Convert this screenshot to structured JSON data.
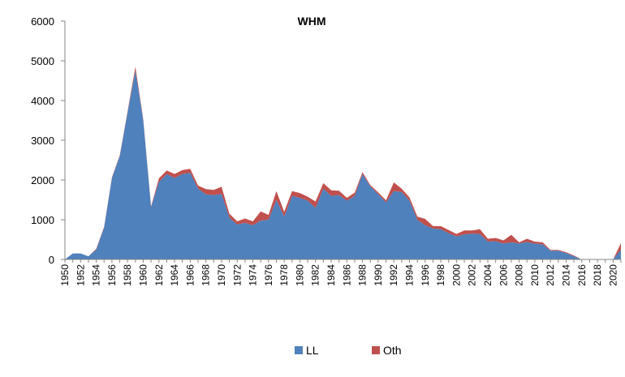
{
  "chart_data": {
    "type": "area",
    "stacked": true,
    "title": "WHM",
    "xlabel": "",
    "ylabel": "",
    "ylim": [
      0,
      6000
    ],
    "yticks": [
      0,
      1000,
      2000,
      3000,
      4000,
      5000,
      6000
    ],
    "xlim": [
      1950,
      2021
    ],
    "xticks": [
      1950,
      1952,
      1954,
      1956,
      1958,
      1960,
      1962,
      1964,
      1966,
      1968,
      1970,
      1972,
      1974,
      1976,
      1978,
      1980,
      1982,
      1984,
      1986,
      1988,
      1990,
      1992,
      1994,
      1996,
      1998,
      2000,
      2002,
      2004,
      2006,
      2008,
      2010,
      2012,
      2014,
      2016,
      2018,
      2020
    ],
    "grid": false,
    "legend_position": "bottom",
    "x": [
      1950,
      1951,
      1952,
      1953,
      1954,
      1955,
      1956,
      1957,
      1958,
      1959,
      1960,
      1961,
      1962,
      1963,
      1964,
      1965,
      1966,
      1967,
      1968,
      1969,
      1970,
      1971,
      1972,
      1973,
      1974,
      1975,
      1976,
      1977,
      1978,
      1979,
      1980,
      1981,
      1982,
      1983,
      1984,
      1985,
      1986,
      1987,
      1988,
      1989,
      1990,
      1991,
      1992,
      1993,
      1994,
      1995,
      1996,
      1997,
      1998,
      1999,
      2000,
      2001,
      2002,
      2003,
      2004,
      2005,
      2006,
      2007,
      2008,
      2009,
      2010,
      2011,
      2012,
      2013,
      2014,
      2015,
      2016,
      2017,
      2018,
      2019,
      2020,
      2021
    ],
    "series": [
      {
        "name": "LL",
        "color": "#4F81BD",
        "values": [
          0,
          150,
          150,
          80,
          250,
          800,
          2050,
          2600,
          3700,
          4750,
          3500,
          1320,
          1950,
          2150,
          2050,
          2150,
          2180,
          1780,
          1640,
          1620,
          1650,
          1050,
          880,
          920,
          860,
          980,
          1000,
          1500,
          1080,
          1600,
          1550,
          1480,
          1300,
          1780,
          1600,
          1620,
          1480,
          1600,
          2150,
          1840,
          1640,
          1440,
          1720,
          1700,
          1480,
          1000,
          860,
          780,
          760,
          660,
          580,
          630,
          650,
          640,
          450,
          460,
          400,
          430,
          400,
          440,
          400,
          380,
          220,
          220,
          160,
          80,
          0,
          0,
          0,
          0,
          0,
          250
        ]
      },
      {
        "name": "Oth",
        "color": "#C0504D",
        "values": [
          0,
          0,
          0,
          0,
          20,
          20,
          20,
          20,
          30,
          100,
          30,
          20,
          90,
          90,
          100,
          100,
          100,
          80,
          130,
          130,
          180,
          100,
          80,
          110,
          100,
          230,
          120,
          220,
          120,
          120,
          120,
          100,
          160,
          140,
          140,
          110,
          70,
          80,
          50,
          30,
          50,
          50,
          220,
          80,
          80,
          80,
          160,
          60,
          80,
          80,
          60,
          100,
          80,
          120,
          70,
          80,
          80,
          190,
          30,
          80,
          50,
          50,
          20,
          20,
          20,
          20,
          0,
          0,
          0,
          0,
          0,
          160
        ]
      }
    ]
  }
}
